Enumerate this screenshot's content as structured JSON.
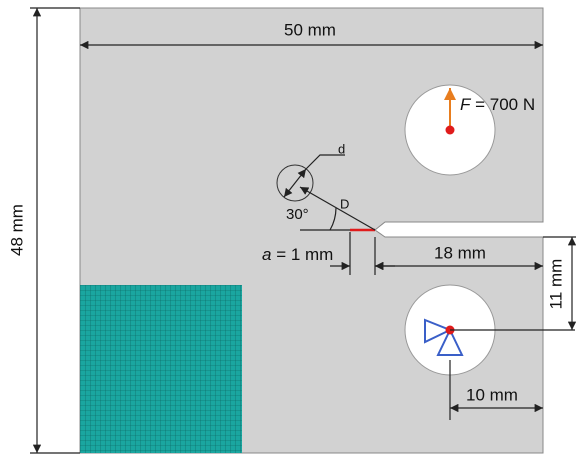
{
  "dimensions": {
    "width": "50 mm",
    "height": "48 mm",
    "notch_length": "18 mm",
    "notch_offset": "11 mm",
    "hole_offset": "10 mm"
  },
  "annotations": {
    "force_symbol": "F",
    "force": " = 700 N",
    "crack_symbol": "a",
    "crack": " = 1 mm",
    "hole_diameter": "d",
    "distance": "D",
    "angle": "30°"
  }
}
